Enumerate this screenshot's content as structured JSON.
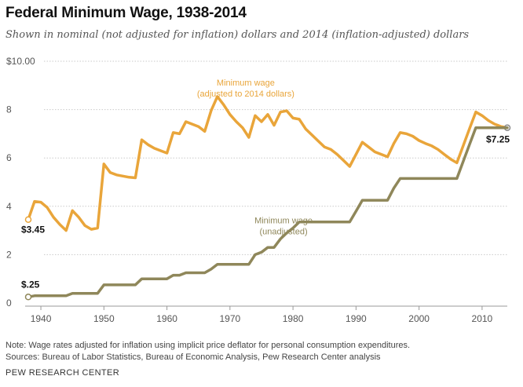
{
  "title": "Federal Minimum Wage, 1938-2014",
  "subtitle": "Shown in nominal (not adjusted for inflation) dollars and 2014 (inflation-adjusted) dollars",
  "note_line1": "Note: Wage rates adjusted for inflation using implicit price deflator for personal consumption expenditures.",
  "note_line2": "Sources: Bureau of Labor Statistics, Bureau of Economic Analysis, Pew Research Center analysis",
  "brand": "PEW RESEARCH CENTER",
  "colors": {
    "adjusted": "#e9a53a",
    "unadjusted": "#8f875a",
    "grid": "#c9c9c9",
    "axis": "#999999"
  },
  "chart_data": {
    "type": "line",
    "xlim": [
      1938,
      2014
    ],
    "ylim": [
      0,
      10
    ],
    "grid": true,
    "yticks": [
      {
        "value": 0,
        "label": "0"
      },
      {
        "value": 2,
        "label": "2"
      },
      {
        "value": 4,
        "label": "4"
      },
      {
        "value": 6,
        "label": "6"
      },
      {
        "value": 8,
        "label": "8"
      },
      {
        "value": 10,
        "label": "$10.00"
      }
    ],
    "xticks": [
      {
        "value": 1940,
        "label": "1940"
      },
      {
        "value": 1950,
        "label": "1950"
      },
      {
        "value": 1960,
        "label": "1960"
      },
      {
        "value": 1970,
        "label": "1970"
      },
      {
        "value": 1980,
        "label": "1980"
      },
      {
        "value": 1990,
        "label": "1990"
      },
      {
        "value": 2000,
        "label": "2000"
      },
      {
        "value": 2010,
        "label": "2010"
      }
    ],
    "series": [
      {
        "key": "adjusted",
        "name": "Minimum wage (adjusted to 2014 dollars)",
        "label_lines": [
          "Minimum wage",
          "(adjusted to 2014 dollars)"
        ],
        "label_at": {
          "x": 1972.5,
          "y": 9.0
        },
        "start_label": "$3.45",
        "end_label": "$7.25",
        "x": [
          1938,
          1939,
          1940,
          1941,
          1942,
          1943,
          1944,
          1945,
          1946,
          1947,
          1948,
          1949,
          1950,
          1951,
          1952,
          1953,
          1954,
          1955,
          1956,
          1957,
          1958,
          1959,
          1960,
          1961,
          1962,
          1963,
          1964,
          1965,
          1966,
          1967,
          1968,
          1969,
          1970,
          1971,
          1972,
          1973,
          1974,
          1975,
          1976,
          1977,
          1978,
          1979,
          1980,
          1981,
          1982,
          1983,
          1984,
          1985,
          1986,
          1987,
          1988,
          1989,
          1990,
          1991,
          1992,
          1993,
          1994,
          1995,
          1996,
          1997,
          1998,
          1999,
          2000,
          2001,
          2002,
          2003,
          2004,
          2005,
          2006,
          2007,
          2008,
          2009,
          2010,
          2011,
          2012,
          2013,
          2014
        ],
        "values": [
          3.45,
          4.2,
          4.17,
          3.95,
          3.55,
          3.25,
          3.0,
          3.82,
          3.55,
          3.2,
          3.05,
          3.1,
          5.75,
          5.4,
          5.3,
          5.25,
          5.2,
          5.18,
          6.75,
          6.55,
          6.4,
          6.3,
          6.2,
          7.05,
          7.0,
          7.5,
          7.4,
          7.3,
          7.1,
          7.95,
          8.54,
          8.2,
          7.8,
          7.5,
          7.25,
          6.85,
          7.75,
          7.5,
          7.8,
          7.35,
          7.9,
          7.95,
          7.65,
          7.6,
          7.2,
          6.95,
          6.7,
          6.45,
          6.35,
          6.15,
          5.9,
          5.65,
          6.15,
          6.65,
          6.45,
          6.25,
          6.15,
          6.05,
          6.6,
          7.05,
          7.0,
          6.9,
          6.72,
          6.6,
          6.5,
          6.35,
          6.15,
          5.95,
          5.8,
          6.5,
          7.2,
          7.9,
          7.75,
          7.55,
          7.4,
          7.3,
          7.25
        ]
      },
      {
        "key": "unadjusted",
        "name": "Minimum wage (unadjusted)",
        "label_lines": [
          "Minimum wage",
          "(unadjusted)"
        ],
        "label_at": {
          "x": 1978.5,
          "y": 3.3
        },
        "start_label": "$.25",
        "end_label": "",
        "x": [
          1938,
          1939,
          1940,
          1941,
          1942,
          1943,
          1944,
          1945,
          1946,
          1947,
          1948,
          1949,
          1950,
          1951,
          1952,
          1953,
          1954,
          1955,
          1956,
          1957,
          1958,
          1959,
          1960,
          1961,
          1962,
          1963,
          1964,
          1965,
          1966,
          1967,
          1968,
          1969,
          1970,
          1971,
          1972,
          1973,
          1974,
          1975,
          1976,
          1977,
          1978,
          1979,
          1980,
          1981,
          1982,
          1983,
          1984,
          1985,
          1986,
          1987,
          1988,
          1989,
          1990,
          1991,
          1992,
          1993,
          1994,
          1995,
          1996,
          1997,
          1998,
          1999,
          2000,
          2001,
          2002,
          2003,
          2004,
          2005,
          2006,
          2007,
          2008,
          2009,
          2010,
          2011,
          2012,
          2013,
          2014
        ],
        "values": [
          0.25,
          0.3,
          0.3,
          0.3,
          0.3,
          0.3,
          0.3,
          0.4,
          0.4,
          0.4,
          0.4,
          0.4,
          0.75,
          0.75,
          0.75,
          0.75,
          0.75,
          0.75,
          1.0,
          1.0,
          1.0,
          1.0,
          1.0,
          1.15,
          1.15,
          1.25,
          1.25,
          1.25,
          1.25,
          1.4,
          1.6,
          1.6,
          1.6,
          1.6,
          1.6,
          1.6,
          2.0,
          2.1,
          2.3,
          2.3,
          2.65,
          2.9,
          3.1,
          3.35,
          3.35,
          3.35,
          3.35,
          3.35,
          3.35,
          3.35,
          3.35,
          3.35,
          3.8,
          4.25,
          4.25,
          4.25,
          4.25,
          4.25,
          4.75,
          5.15,
          5.15,
          5.15,
          5.15,
          5.15,
          5.15,
          5.15,
          5.15,
          5.15,
          5.15,
          5.85,
          6.55,
          7.25,
          7.25,
          7.25,
          7.25,
          7.25,
          7.25
        ]
      }
    ]
  }
}
